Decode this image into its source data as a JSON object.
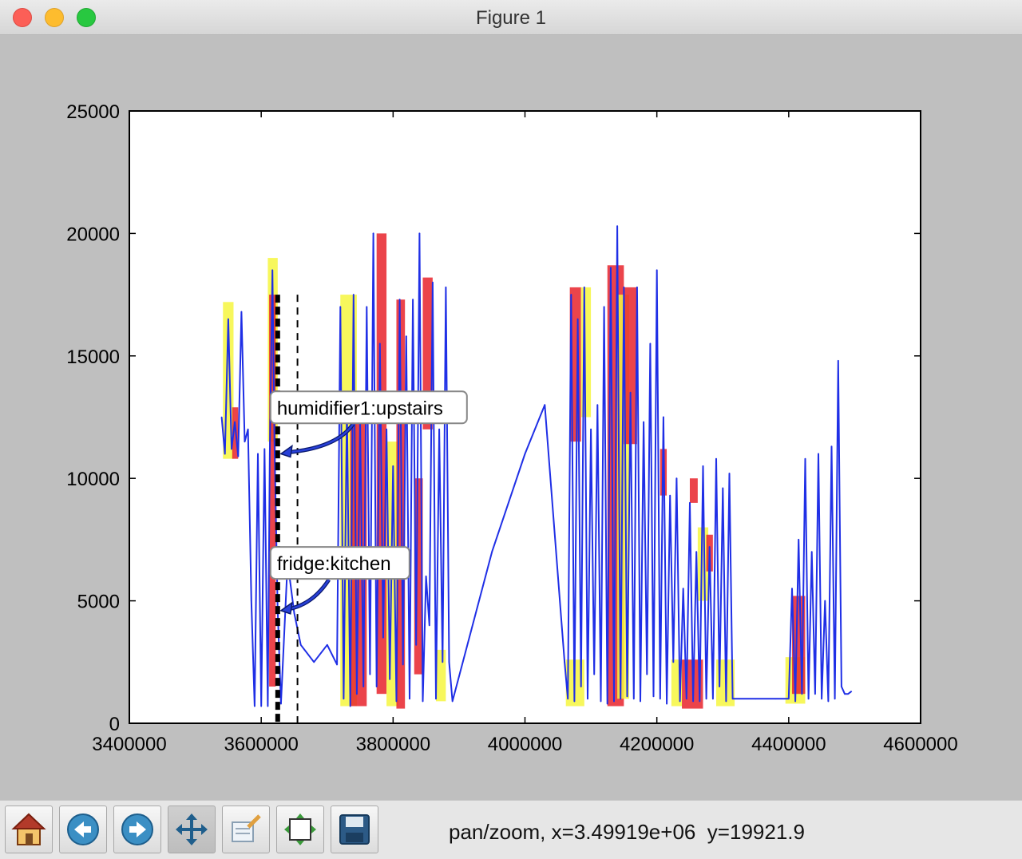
{
  "window": {
    "title": "Figure 1"
  },
  "toolbar": {
    "buttons": [
      {
        "name": "home-button",
        "icon": "home-icon"
      },
      {
        "name": "back-button",
        "icon": "arrow-left-icon"
      },
      {
        "name": "forward-button",
        "icon": "arrow-right-icon"
      },
      {
        "name": "pan-button",
        "icon": "move-icon"
      },
      {
        "name": "zoom-button",
        "icon": "zoom-rect-icon"
      },
      {
        "name": "subplots-button",
        "icon": "subplots-icon"
      },
      {
        "name": "save-button",
        "icon": "floppy-disk-icon"
      }
    ],
    "status": "pan/zoom, x=3.49919e+06  y=19921.9"
  },
  "chart_data": {
    "type": "line",
    "title": "",
    "xlabel": "",
    "ylabel": "",
    "xlim": [
      3400000,
      4600000
    ],
    "ylim": [
      0,
      25000
    ],
    "xticks": [
      3400000,
      3600000,
      3800000,
      4000000,
      4200000,
      4400000,
      4600000
    ],
    "xtick_labels": [
      "3400000",
      "3600000",
      "3800000",
      "4000000",
      "4200000",
      "4400000",
      "4600000"
    ],
    "yticks": [
      0,
      5000,
      10000,
      15000,
      20000,
      25000
    ],
    "ytick_labels": [
      "0",
      "5000",
      "10000",
      "15000",
      "20000",
      "25000"
    ],
    "grid": false,
    "colors": {
      "series": "#1f2fe6",
      "red_blocks": "#e8232b",
      "yellow_blocks": "#f6f640",
      "vlines": "#000000"
    },
    "series": [
      {
        "color": "#1f2fe6",
        "x": [
          3540000,
          3545000,
          3550000,
          3555000,
          3560000,
          3565000,
          3570000,
          3575000,
          3580000,
          3585000,
          3590000,
          3595000,
          3600000,
          3605000,
          3610000,
          3613000,
          3617000,
          3620000,
          3625000,
          3630000,
          3640000,
          3650000,
          3660000,
          3680000,
          3700000,
          3715000,
          3720000,
          3725000,
          3730000,
          3735000,
          3740000,
          3745000,
          3750000,
          3755000,
          3760000,
          3765000,
          3770000,
          3775000,
          3780000,
          3785000,
          3790000,
          3795000,
          3800000,
          3805000,
          3810000,
          3815000,
          3820000,
          3825000,
          3830000,
          3835000,
          3840000,
          3845000,
          3850000,
          3855000,
          3860000,
          3865000,
          3870000,
          3875000,
          3880000,
          3885000,
          3890000,
          3950000,
          4000000,
          4030000,
          4060000,
          4065000,
          4070000,
          4075000,
          4080000,
          4085000,
          4090000,
          4095000,
          4100000,
          4105000,
          4110000,
          4115000,
          4120000,
          4125000,
          4130000,
          4135000,
          4140000,
          4145000,
          4150000,
          4155000,
          4160000,
          4165000,
          4170000,
          4175000,
          4180000,
          4185000,
          4190000,
          4195000,
          4200000,
          4205000,
          4210000,
          4215000,
          4220000,
          4225000,
          4230000,
          4235000,
          4240000,
          4245000,
          4250000,
          4255000,
          4260000,
          4265000,
          4270000,
          4275000,
          4280000,
          4285000,
          4290000,
          4295000,
          4300000,
          4305000,
          4310000,
          4315000,
          4320000,
          4350000,
          4380000,
          4400000,
          4405000,
          4410000,
          4415000,
          4420000,
          4425000,
          4430000,
          4435000,
          4440000,
          4445000,
          4450000,
          4455000,
          4460000,
          4465000,
          4470000,
          4475000,
          4480000,
          4485000,
          4490000,
          4495000
        ],
        "values": [
          12500,
          11000,
          16500,
          11200,
          12300,
          10900,
          16800,
          11500,
          12000,
          5000,
          700,
          11000,
          700,
          11200,
          700,
          11000,
          18500,
          11600,
          4600,
          800,
          6600,
          4500,
          3200,
          2500,
          3200,
          2400,
          17000,
          1000,
          13000,
          700,
          17500,
          1200,
          12500,
          1500,
          17000,
          2000,
          20000,
          1500,
          15500,
          3500,
          12000,
          1800,
          10500,
          900,
          17300,
          2400,
          15800,
          1000,
          17300,
          3200,
          20000,
          900,
          6000,
          4000,
          18000,
          1000,
          12000,
          2500,
          17800,
          2500,
          900,
          7000,
          11000,
          13000,
          2500,
          1000,
          17500,
          900,
          16500,
          1500,
          17800,
          1000,
          12000,
          2000,
          13000,
          900,
          17000,
          800,
          18600,
          900,
          20300,
          1000,
          17800,
          1100,
          13500,
          1000,
          17800,
          900,
          12300,
          2000,
          15500,
          1100,
          18500,
          1000,
          12500,
          800,
          9300,
          2500,
          10000,
          900,
          5500,
          1000,
          9000,
          900,
          7000,
          900,
          10500,
          1000,
          7200,
          1000,
          10800,
          1500,
          9600,
          900,
          10200,
          1000,
          1000,
          1000,
          1000,
          1000,
          5500,
          900,
          7500,
          1200,
          10800,
          1000,
          7000,
          1200,
          11000,
          1000,
          5000,
          900,
          11300,
          1000,
          14800,
          1500,
          1200,
          1200,
          1300
        ]
      }
    ],
    "vlines": [
      {
        "x": 3625000,
        "style": "dashed",
        "weight": "heavy"
      },
      {
        "x": 3655000,
        "style": "dashed",
        "weight": "light"
      }
    ],
    "vline_ranges": [
      [
        0,
        17500
      ],
      [
        0,
        17500
      ]
    ],
    "annotations": [
      {
        "text": "humidifier1:upstairs",
        "x": 3625000,
        "y": 11000
      },
      {
        "text": "fridge:kitchen",
        "x": 3625000,
        "y": 4600
      }
    ],
    "block_spans": [
      {
        "color": "#f6f640",
        "x0": 3542000,
        "x1": 3558000,
        "y0": 10800,
        "y1": 17200
      },
      {
        "color": "#e8232b",
        "x0": 3556000,
        "x1": 3565000,
        "y0": 10800,
        "y1": 12900
      },
      {
        "color": "#f6f640",
        "x0": 3610000,
        "x1": 3625000,
        "y0": 11500,
        "y1": 19000
      },
      {
        "color": "#e8232b",
        "x0": 3612000,
        "x1": 3622000,
        "y0": 1500,
        "y1": 17500
      },
      {
        "color": "#f6f640",
        "x0": 3720000,
        "x1": 3745000,
        "y0": 700,
        "y1": 17500
      },
      {
        "color": "#e8232b",
        "x0": 3735000,
        "x1": 3760000,
        "y0": 700,
        "y1": 13500
      },
      {
        "color": "#e8232b",
        "x0": 3775000,
        "x1": 3790000,
        "y0": 1200,
        "y1": 20000
      },
      {
        "color": "#f6f640",
        "x0": 3790000,
        "x1": 3808000,
        "y0": 700,
        "y1": 11500
      },
      {
        "color": "#e8232b",
        "x0": 3805000,
        "x1": 3818000,
        "y0": 600,
        "y1": 17300
      },
      {
        "color": "#e8232b",
        "x0": 3832000,
        "x1": 3845000,
        "y0": 2000,
        "y1": 10000
      },
      {
        "color": "#e8232b",
        "x0": 3845000,
        "x1": 3860000,
        "y0": 12000,
        "y1": 18200
      },
      {
        "color": "#f6f640",
        "x0": 3865000,
        "x1": 3880000,
        "y0": 900,
        "y1": 3000
      },
      {
        "color": "#f6f640",
        "x0": 4062000,
        "x1": 4090000,
        "y0": 700,
        "y1": 2600
      },
      {
        "color": "#e8232b",
        "x0": 4068000,
        "x1": 4085000,
        "y0": 11500,
        "y1": 17800
      },
      {
        "color": "#f6f640",
        "x0": 4085000,
        "x1": 4100000,
        "y0": 12500,
        "y1": 17800
      },
      {
        "color": "#e8232b",
        "x0": 4125000,
        "x1": 4150000,
        "y0": 700,
        "y1": 18700
      },
      {
        "color": "#f6f640",
        "x0": 4140000,
        "x1": 4158000,
        "y0": 1000,
        "y1": 17500
      },
      {
        "color": "#e8232b",
        "x0": 4150000,
        "x1": 4170000,
        "y0": 11400,
        "y1": 17800
      },
      {
        "color": "#e8232b",
        "x0": 4205000,
        "x1": 4215000,
        "y0": 9300,
        "y1": 11200
      },
      {
        "color": "#f6f640",
        "x0": 4222000,
        "x1": 4238000,
        "y0": 700,
        "y1": 2600
      },
      {
        "color": "#e8232b",
        "x0": 4238000,
        "x1": 4270000,
        "y0": 600,
        "y1": 2600
      },
      {
        "color": "#e8232b",
        "x0": 4250000,
        "x1": 4262000,
        "y0": 9000,
        "y1": 10000
      },
      {
        "color": "#f6f640",
        "x0": 4262000,
        "x1": 4278000,
        "y0": 5000,
        "y1": 8000
      },
      {
        "color": "#e8232b",
        "x0": 4275000,
        "x1": 4285000,
        "y0": 6200,
        "y1": 7700
      },
      {
        "color": "#f6f640",
        "x0": 4290000,
        "x1": 4318000,
        "y0": 700,
        "y1": 2600
      },
      {
        "color": "#f6f640",
        "x0": 4395000,
        "x1": 4425000,
        "y0": 800,
        "y1": 2700
      },
      {
        "color": "#e8232b",
        "x0": 4405000,
        "x1": 4425000,
        "y0": 1200,
        "y1": 5200
      }
    ]
  }
}
